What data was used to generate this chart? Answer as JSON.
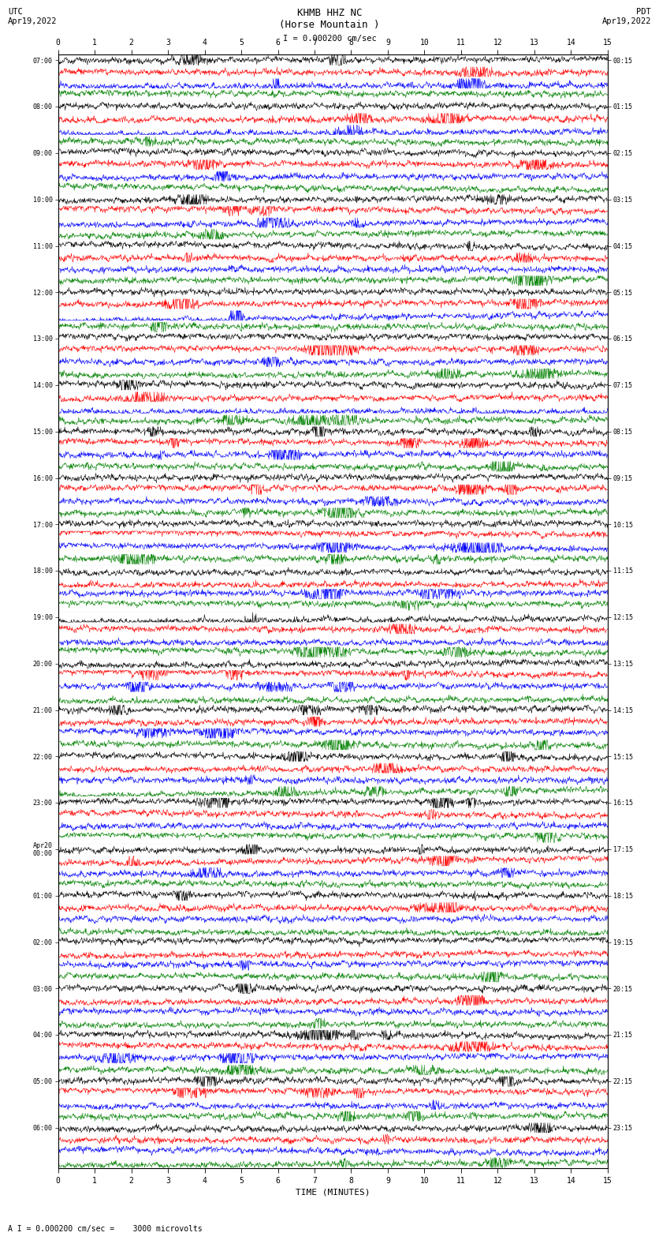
{
  "title_center": "KHMB HHZ NC\n(Horse Mountain )",
  "title_left": "UTC\nApr19,2022",
  "title_right": "PDT\nApr19,2022",
  "scale_label": "I = 0.000200 cm/sec",
  "footer_text": "A I = 0.000200 cm/sec =    3000 microvolts",
  "xlabel": "TIME (MINUTES)",
  "xlim": [
    0,
    15
  ],
  "xticks": [
    0,
    1,
    2,
    3,
    4,
    5,
    6,
    7,
    8,
    9,
    10,
    11,
    12,
    13,
    14,
    15
  ],
  "colors": [
    "black",
    "red",
    "blue",
    "green"
  ],
  "samples_per_row": 1500,
  "amplitude_scale": 0.28,
  "left_labels": [
    "07:00",
    "08:00",
    "09:00",
    "10:00",
    "11:00",
    "12:00",
    "13:00",
    "14:00",
    "15:00",
    "16:00",
    "17:00",
    "18:00",
    "19:00",
    "20:00",
    "21:00",
    "22:00",
    "23:00",
    "Apr20\n00:00",
    "01:00",
    "02:00",
    "03:00",
    "04:00",
    "05:00",
    "06:00"
  ],
  "right_labels": [
    "00:15",
    "01:15",
    "02:15",
    "03:15",
    "04:15",
    "05:15",
    "06:15",
    "07:15",
    "08:15",
    "09:15",
    "10:15",
    "11:15",
    "12:15",
    "13:15",
    "14:15",
    "15:15",
    "16:15",
    "17:15",
    "18:15",
    "19:15",
    "20:15",
    "21:15",
    "22:15",
    "23:15"
  ],
  "n_traces_per_group": 4,
  "figsize": [
    8.5,
    16.13
  ],
  "dpi": 100,
  "bg_color": "white",
  "trace_lw": 0.4
}
